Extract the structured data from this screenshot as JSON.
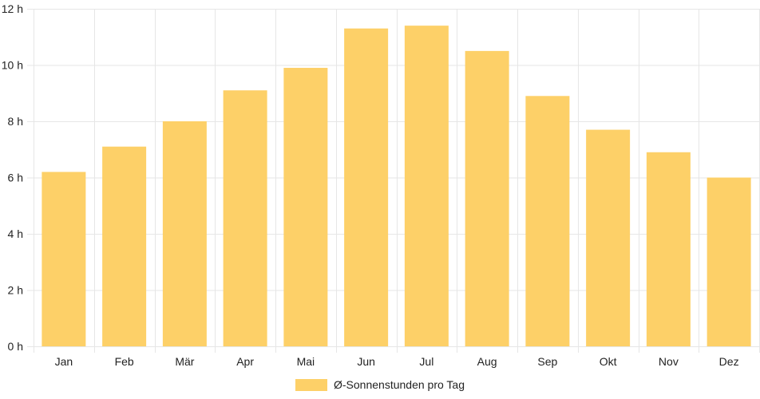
{
  "chart_data": {
    "type": "bar",
    "categories": [
      "Jan",
      "Feb",
      "Mär",
      "Apr",
      "Mai",
      "Jun",
      "Jul",
      "Aug",
      "Sep",
      "Okt",
      "Nov",
      "Dez"
    ],
    "series": [
      {
        "name": "Ø-Sonnenstunden pro Tag",
        "values": [
          6.2,
          7.1,
          8.0,
          9.1,
          9.9,
          11.3,
          11.4,
          10.5,
          8.9,
          7.7,
          6.9,
          6.0
        ],
        "color": "#fdd068"
      }
    ],
    "y_ticks": [
      "0 h",
      "2 h",
      "4 h",
      "6 h",
      "8 h",
      "10 h",
      "12 h"
    ],
    "ylim": [
      0,
      12
    ],
    "grid": true,
    "legend_position": "bottom",
    "grid_color": "#e6e6e6"
  }
}
